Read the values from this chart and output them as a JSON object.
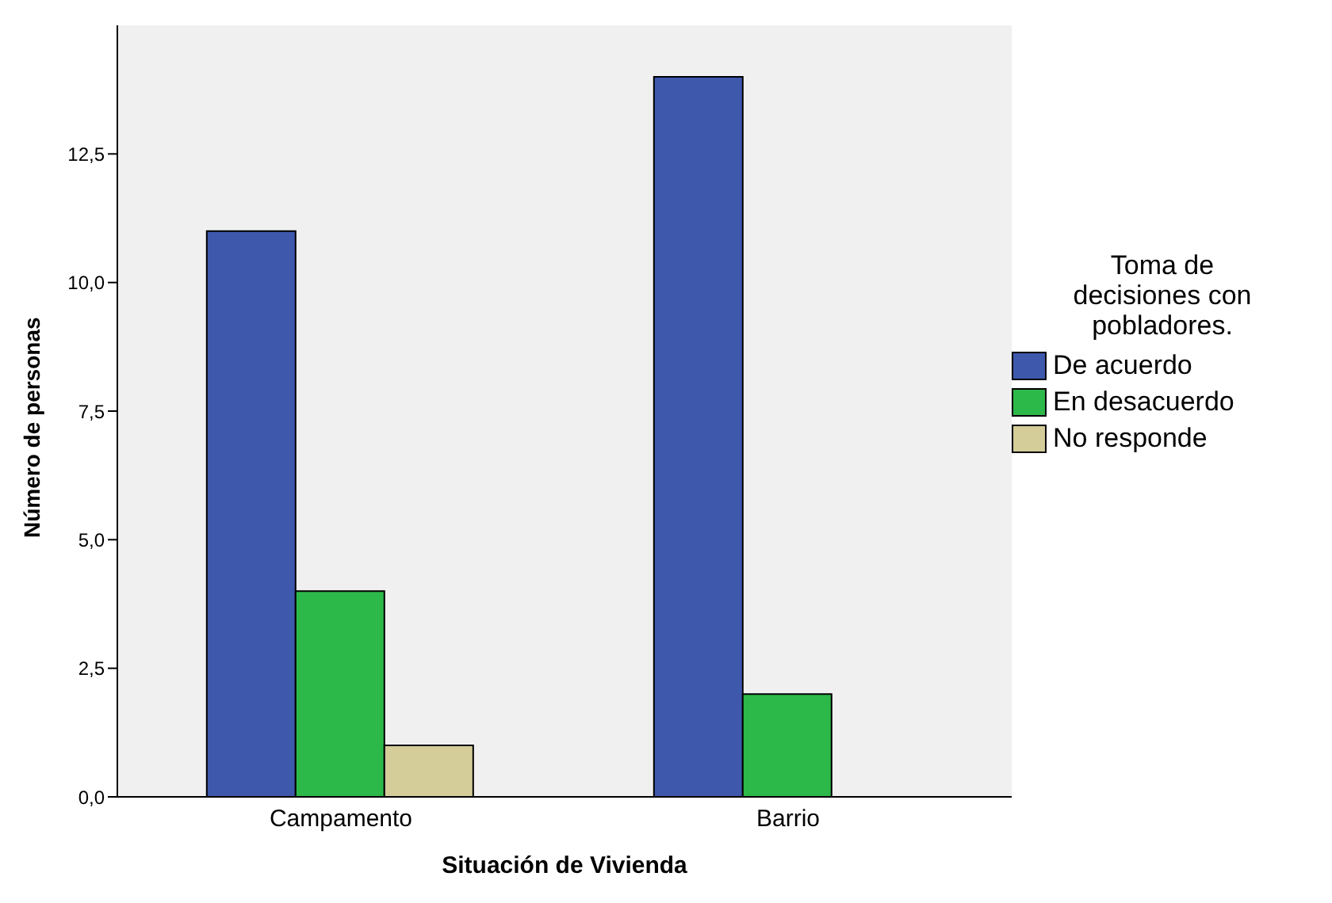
{
  "chart_data": {
    "type": "bar",
    "xlabel": "Situación de Vivienda",
    "ylabel": "Número de personas",
    "legend_title": "Toma de decisiones con pobladores.",
    "categories": [
      "Campamento",
      "Barrio"
    ],
    "series": [
      {
        "name": "De acuerdo",
        "color": "#3e58ac",
        "values": [
          11,
          14
        ]
      },
      {
        "name": "En desacuerdo",
        "color": "#2db84a",
        "values": [
          4,
          2
        ]
      },
      {
        "name": "No responde",
        "color": "#d4cc99",
        "values": [
          1,
          null
        ]
      }
    ],
    "ylim": [
      0,
      15
    ],
    "yticks": [
      {
        "value": 0,
        "label": "0,0"
      },
      {
        "value": 2.5,
        "label": "2,5"
      },
      {
        "value": 5,
        "label": "5,0"
      },
      {
        "value": 7.5,
        "label": "7,5"
      },
      {
        "value": 10,
        "label": "10,0"
      },
      {
        "value": 12.5,
        "label": "12,5"
      }
    ],
    "grid": false,
    "legend": "right"
  }
}
